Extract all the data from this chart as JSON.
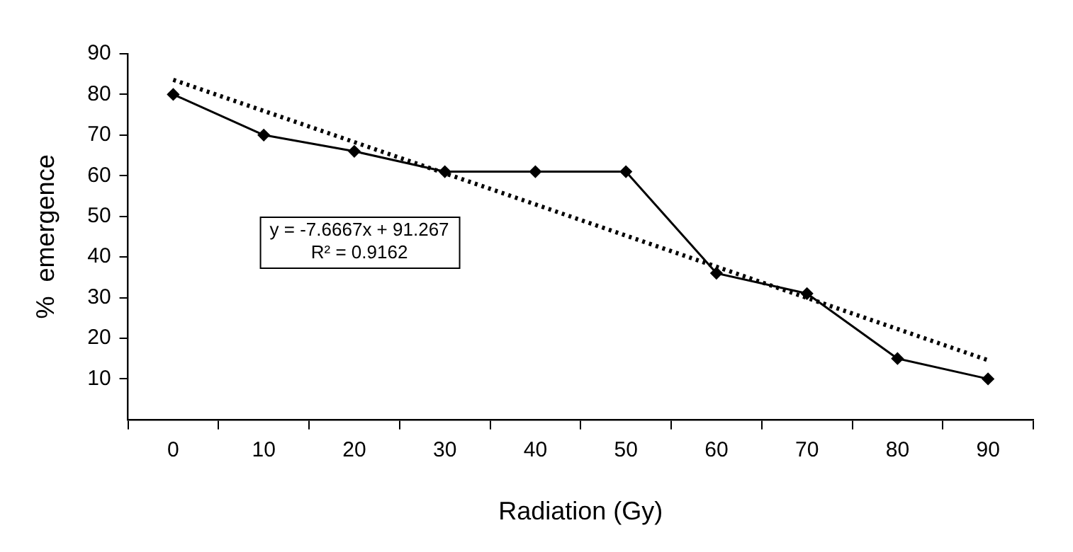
{
  "chart_data": {
    "type": "line",
    "xlabel": "Radiation (Gy)",
    "ylabel": "%  emergence",
    "categories": [
      "0",
      "10",
      "20",
      "30",
      "40",
      "50",
      "60",
      "70",
      "80",
      "90"
    ],
    "series": [
      {
        "color": "#000000",
        "values": [
          80,
          70,
          66,
          61,
          61,
          61,
          36,
          31,
          15,
          10
        ],
        "marker": "diamond",
        "line_style": "solid"
      },
      {
        "type": "line",
        "color": "#000000",
        "values": [
          83.6,
          null,
          null,
          null,
          null,
          null,
          null,
          null,
          null,
          14.6
        ],
        "marker": "none",
        "line_style": "dotted"
      }
    ],
    "ylim": [
      0,
      90
    ],
    "yticks": [
      10,
      20,
      30,
      40,
      50,
      60,
      70,
      80,
      90
    ],
    "annotations": [
      "y = -7.6667x + 91.267",
      "R² = 0.9162"
    ]
  }
}
